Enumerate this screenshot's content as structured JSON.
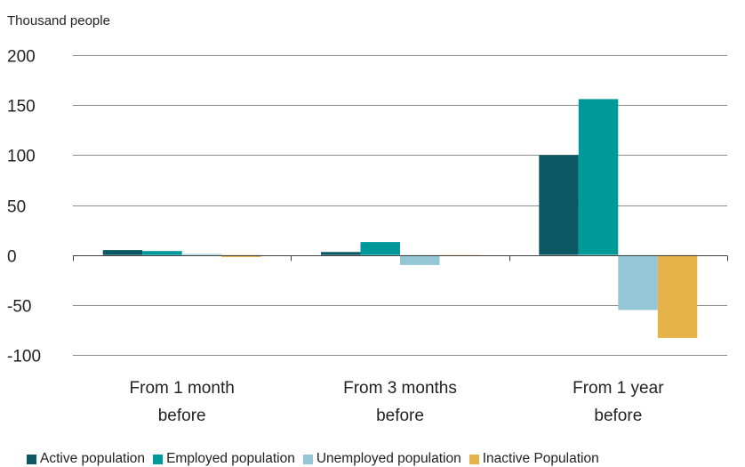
{
  "chart_data": {
    "type": "bar",
    "ylabel": "Thousand people",
    "ylim": [
      -100,
      200
    ],
    "yticks": [
      200,
      150,
      100,
      50,
      0,
      -50,
      -100
    ],
    "grid": true,
    "legend_position": "bottom",
    "categories": [
      [
        "From 1 month",
        "before"
      ],
      [
        "From 3 months",
        "before"
      ],
      [
        "From 1 year",
        "before"
      ]
    ],
    "series": [
      {
        "name": "Active population",
        "color": "#0b5763",
        "values": [
          5,
          3,
          100
        ]
      },
      {
        "name": "Employed population",
        "color": "#00999a",
        "values": [
          4,
          13,
          156
        ]
      },
      {
        "name": "Unemployed population",
        "color": "#94c6d6",
        "values": [
          1,
          -10,
          -55
        ]
      },
      {
        "name": "Inactive Population",
        "color": "#e6b24a",
        "values": [
          -2,
          -1,
          -83
        ]
      }
    ]
  }
}
